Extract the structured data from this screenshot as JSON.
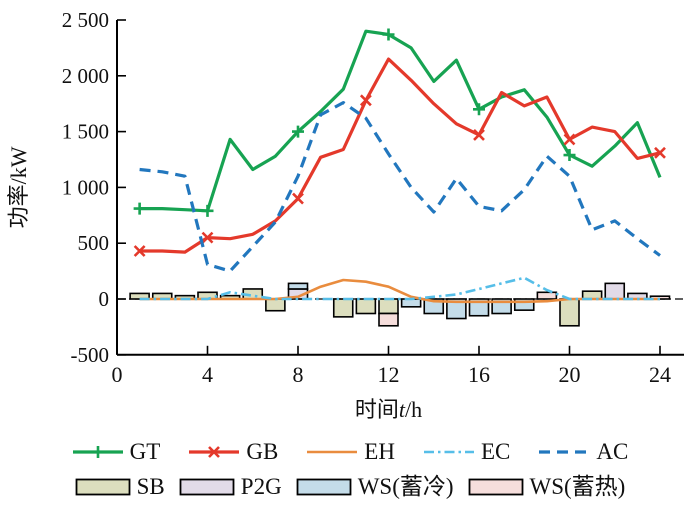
{
  "figure": {
    "background": "#ffffff",
    "axis_color": "#000000",
    "y_axis": {
      "label": "功率/kW",
      "min": -500,
      "max": 2500,
      "ticks": [
        {
          "v": 2500,
          "label": "2 500"
        },
        {
          "v": 2000,
          "label": "2 000"
        },
        {
          "v": 1500,
          "label": "1 500"
        },
        {
          "v": 1000,
          "label": "1 000"
        },
        {
          "v": 500,
          "label": "500"
        },
        {
          "v": 0,
          "label": "0"
        },
        {
          "v": -500,
          "label": "-500"
        }
      ]
    },
    "x_axis": {
      "label_prefix": "时间",
      "label_var": "t",
      "label_suffix": "/h",
      "min": 0,
      "max": 24,
      "ticks": [
        0,
        4,
        8,
        12,
        16,
        20,
        24
      ]
    }
  },
  "chart_data": {
    "type": "line+bar",
    "title": "",
    "xlabel": "时间t/h",
    "ylabel": "功率/kW",
    "xlim": [
      0,
      24
    ],
    "ylim": [
      -500,
      2500
    ],
    "grid": false,
    "legend_position": "bottom",
    "x_hours": [
      1,
      2,
      3,
      4,
      5,
      6,
      7,
      8,
      9,
      10,
      11,
      12,
      13,
      14,
      15,
      16,
      17,
      18,
      19,
      20,
      21,
      22,
      23,
      24
    ],
    "line_series": [
      {
        "name": "GT",
        "color": "#17a352",
        "width": 3.2,
        "dash": "solid",
        "marker": "plus",
        "marker_hours": [
          1,
          4,
          8,
          12,
          16,
          20
        ],
        "values": [
          810,
          810,
          800,
          790,
          1430,
          1160,
          1280,
          1500,
          1680,
          1880,
          2400,
          2370,
          2250,
          1950,
          2140,
          1700,
          1810,
          1875,
          1630,
          1290,
          1190,
          1370,
          1580,
          1090
        ]
      },
      {
        "name": "GB",
        "color": "#e4392b",
        "width": 3.2,
        "dash": "solid",
        "marker": "x",
        "marker_hours": [
          1,
          4,
          8,
          11,
          16,
          20,
          24
        ],
        "values": [
          430,
          430,
          420,
          550,
          540,
          580,
          700,
          900,
          1270,
          1340,
          1780,
          2150,
          1960,
          1750,
          1570,
          1470,
          1850,
          1730,
          1810,
          1430,
          1540,
          1500,
          1260,
          1310
        ]
      },
      {
        "name": "EH",
        "color": "#e98c3e",
        "width": 2.6,
        "dash": "solid",
        "marker": null,
        "marker_hours": [],
        "values": [
          0,
          0,
          0,
          0,
          0,
          0,
          0,
          20,
          110,
          170,
          155,
          110,
          20,
          -20,
          -25,
          -25,
          -25,
          -25,
          -20,
          0,
          0,
          0,
          0,
          0
        ]
      },
      {
        "name": "EC",
        "color": "#56bee8",
        "width": 2.6,
        "dash": "dashdot",
        "marker": null,
        "marker_hours": [],
        "values": [
          0,
          0,
          0,
          0,
          60,
          30,
          0,
          0,
          0,
          0,
          0,
          0,
          0,
          20,
          40,
          90,
          140,
          190,
          80,
          0,
          0,
          0,
          0,
          0
        ]
      },
      {
        "name": "AC",
        "color": "#2277be",
        "width": 3.2,
        "dash": "dash",
        "marker": null,
        "marker_hours": [],
        "values": [
          1160,
          1140,
          1100,
          310,
          250,
          470,
          690,
          1100,
          1650,
          1760,
          1620,
          1300,
          1000,
          780,
          1080,
          830,
          790,
          980,
          1280,
          1100,
          620,
          700,
          540,
          390
        ]
      }
    ],
    "bar_series": [
      {
        "name": "SB",
        "fill": "#dcdebe",
        "values": [
          50,
          50,
          30,
          60,
          30,
          90,
          -105,
          0,
          0,
          -160,
          -130,
          -130,
          0,
          0,
          0,
          0,
          0,
          0,
          0,
          -240,
          70,
          0,
          0,
          0
        ]
      },
      {
        "name": "P2G",
        "fill": "#e2dbe8",
        "values": [
          0,
          0,
          0,
          0,
          0,
          0,
          0,
          90,
          0,
          0,
          0,
          0,
          0,
          0,
          0,
          0,
          0,
          0,
          0,
          0,
          0,
          140,
          50,
          0
        ]
      },
      {
        "name": "WS(蓄冷)",
        "fill": "#c4dce9",
        "values": [
          0,
          0,
          0,
          0,
          0,
          0,
          0,
          50,
          0,
          0,
          0,
          0,
          -70,
          -130,
          -175,
          -150,
          -130,
          -100,
          0,
          0,
          0,
          0,
          0,
          0
        ]
      },
      {
        "name": "WS(蓄热)",
        "fill": "#f6dedc",
        "values": [
          0,
          0,
          0,
          0,
          0,
          0,
          0,
          0,
          0,
          0,
          0,
          -110,
          0,
          0,
          0,
          0,
          0,
          0,
          60,
          0,
          0,
          0,
          0,
          25
        ]
      }
    ],
    "zero_line": {
      "value": 0,
      "style": "dashdot",
      "color": "#000000"
    },
    "legend_rows": [
      [
        "GT",
        "GB",
        "EH",
        "EC",
        "AC"
      ],
      [
        "SB",
        "P2G",
        "WS(蓄冷)",
        "WS(蓄热)"
      ]
    ]
  }
}
